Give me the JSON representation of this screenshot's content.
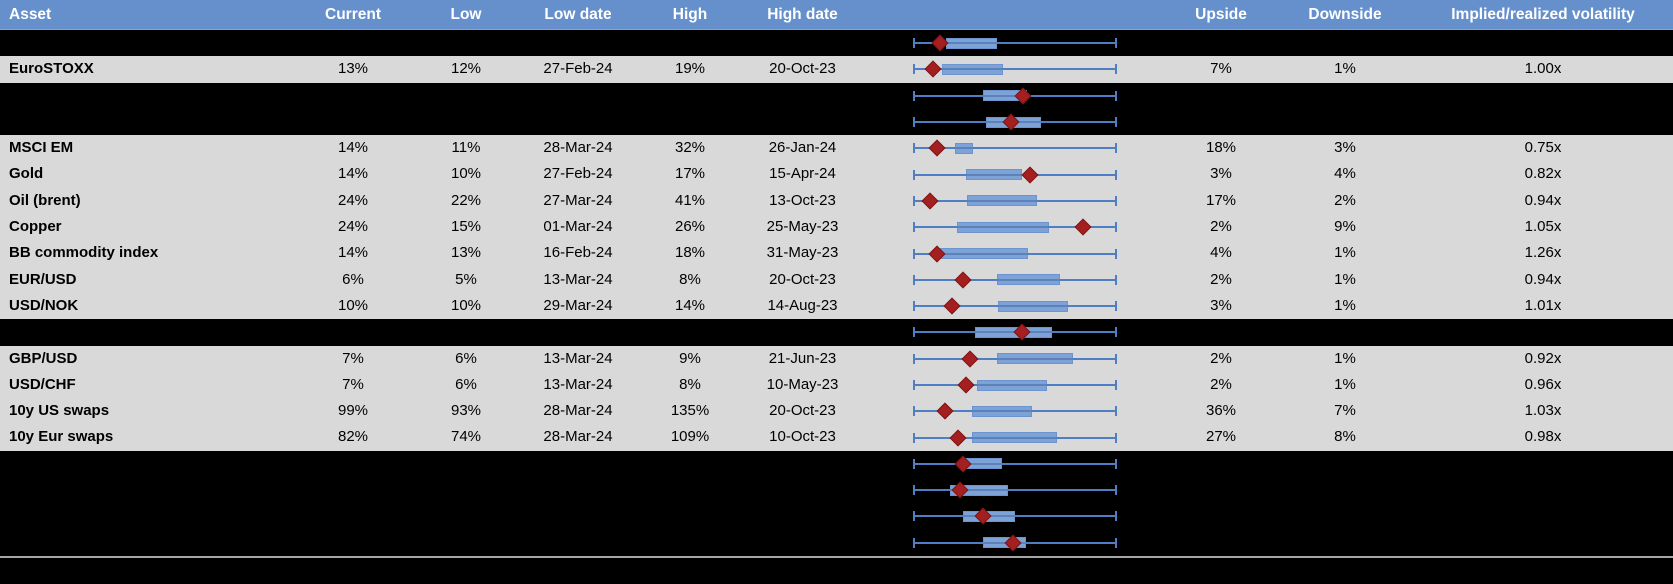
{
  "colors": {
    "header_bg": "#6590CB",
    "header_text": "#FFFFFF",
    "data_row_bg": "#D9D9D9",
    "spacer_row_bg": "#000000",
    "body_text": "#000000",
    "box_fill": "#7CA2D8",
    "whisker_line": "#4E7FC4",
    "marker_red": "#A42020",
    "bottom_divider_line": "#A6A6A6"
  },
  "chart_data": {
    "type": "table+boxplot",
    "columns": [
      "Asset",
      "Current",
      "Low",
      "Low date",
      "High",
      "High date",
      "",
      "Upside",
      "Downside",
      "Implied/realized volatility"
    ],
    "boxplot_axis": "normalized 0-1 over common whisker span; box=[left,right], marker=red diamond position",
    "rows": [
      {
        "kind": "spacer",
        "box": [
          0.162,
          0.412
        ],
        "marker": 0.132
      },
      {
        "kind": "data",
        "asset": "EuroSTOXX",
        "current": "13%",
        "low": "12%",
        "low_date": "27-Feb-24",
        "high": "19%",
        "high_date": "20-Oct-23",
        "upside": "7%",
        "downside": "1%",
        "implied_realized": "1.00x",
        "box": [
          0.141,
          0.443
        ],
        "marker": 0.097
      },
      {
        "kind": "spacer",
        "box": [
          0.345,
          0.557
        ],
        "marker": 0.538
      },
      {
        "kind": "spacer",
        "box": [
          0.356,
          0.626
        ],
        "marker": 0.479
      },
      {
        "kind": "data",
        "asset": "MSCI EM",
        "current": "14%",
        "low": "11%",
        "low_date": "28-Mar-24",
        "high": "32%",
        "high_date": "26-Jan-24",
        "upside": "18%",
        "downside": "3%",
        "implied_realized": "0.75x",
        "box": [
          0.206,
          0.296
        ],
        "marker": 0.116
      },
      {
        "kind": "data",
        "asset": "Gold",
        "current": "14%",
        "low": "10%",
        "low_date": "27-Feb-24",
        "high": "17%",
        "high_date": "15-Apr-24",
        "upside": "3%",
        "downside": "4%",
        "implied_realized": "0.82x",
        "box": [
          0.26,
          0.533
        ],
        "marker": 0.574
      },
      {
        "kind": "data",
        "asset": "Oil (brent)",
        "current": "24%",
        "low": "22%",
        "low_date": "27-Mar-24",
        "high": "41%",
        "high_date": "13-Oct-23",
        "upside": "17%",
        "downside": "2%",
        "implied_realized": "0.94x",
        "box": [
          0.263,
          0.609
        ],
        "marker": 0.083
      },
      {
        "kind": "data",
        "asset": "Copper",
        "current": "24%",
        "low": "15%",
        "low_date": "01-Mar-24",
        "high": "26%",
        "high_date": "25-May-23",
        "upside": "2%",
        "downside": "9%",
        "implied_realized": "1.05x",
        "box": [
          0.217,
          0.668
        ],
        "marker": 0.833
      },
      {
        "kind": "data",
        "asset": "BB commodity index",
        "current": "14%",
        "low": "13%",
        "low_date": "16-Feb-24",
        "high": "18%",
        "high_date": "31-May-23",
        "upside": "4%",
        "downside": "1%",
        "implied_realized": "1.26x",
        "box": [
          0.132,
          0.565
        ],
        "marker": 0.119
      },
      {
        "kind": "data",
        "asset": "EUR/USD",
        "current": "6%",
        "low": "5%",
        "low_date": "13-Mar-24",
        "high": "8%",
        "high_date": "20-Oct-23",
        "upside": "2%",
        "downside": "1%",
        "implied_realized": "0.94x",
        "box": [
          0.413,
          0.721
        ],
        "marker": 0.247
      },
      {
        "kind": "data",
        "asset": "USD/NOK",
        "current": "10%",
        "low": "10%",
        "low_date": "29-Mar-24",
        "high": "14%",
        "high_date": "14-Aug-23",
        "upside": "3%",
        "downside": "1%",
        "implied_realized": "1.01x",
        "box": [
          0.418,
          0.761
        ],
        "marker": 0.19
      },
      {
        "kind": "spacer",
        "box": [
          0.304,
          0.68
        ],
        "marker": 0.533
      },
      {
        "kind": "data",
        "asset": "GBP/USD",
        "current": "7%",
        "low": "6%",
        "low_date": "13-Mar-24",
        "high": "9%",
        "high_date": "21-Jun-23",
        "upside": "2%",
        "downside": "1%",
        "implied_realized": "0.92x",
        "box": [
          0.41,
          0.786
        ],
        "marker": 0.279
      },
      {
        "kind": "data",
        "asset": "USD/CHF",
        "current": "7%",
        "low": "6%",
        "low_date": "13-Mar-24",
        "high": "8%",
        "high_date": "10-May-23",
        "upside": "2%",
        "downside": "1%",
        "implied_realized": "0.96x",
        "box": [
          0.312,
          0.655
        ],
        "marker": 0.258
      },
      {
        "kind": "data",
        "asset": "10y US swaps",
        "current": "99%",
        "low": "93%",
        "low_date": "28-Mar-24",
        "high": "135%",
        "high_date": "20-Oct-23",
        "upside": "36%",
        "downside": "7%",
        "implied_realized": "1.03x",
        "box": [
          0.288,
          0.582
        ],
        "marker": 0.157
      },
      {
        "kind": "data",
        "asset": "10y Eur swaps",
        "current": "82%",
        "low": "74%",
        "low_date": "28-Mar-24",
        "high": "109%",
        "high_date": "10-Oct-23",
        "upside": "27%",
        "downside": "8%",
        "implied_realized": "0.98x",
        "box": [
          0.288,
          0.704
        ],
        "marker": 0.222
      },
      {
        "kind": "spacer",
        "box": [
          0.244,
          0.435
        ],
        "marker": 0.244
      },
      {
        "kind": "spacer",
        "box": [
          0.181,
          0.467
        ],
        "marker": 0.23
      },
      {
        "kind": "spacer",
        "box": [
          0.244,
          0.5
        ],
        "marker": 0.345
      },
      {
        "kind": "spacer",
        "box": [
          0.345,
          0.554
        ],
        "marker": 0.489
      }
    ]
  }
}
